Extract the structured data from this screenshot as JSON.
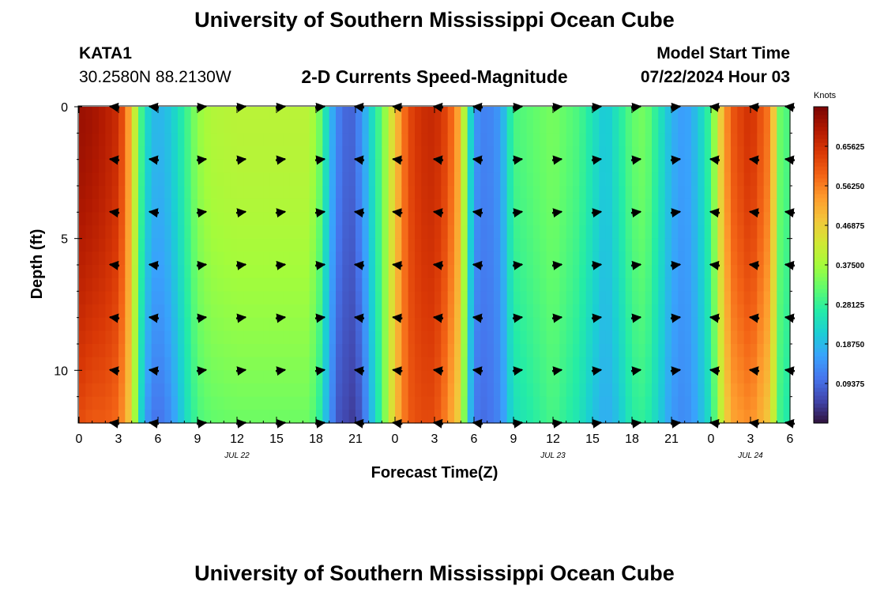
{
  "header": {
    "title": "University of Southern Mississippi Ocean Cube",
    "station_id": "KATA1",
    "station_coords": "30.2580N  88.2130W",
    "plot_title": "2-D Currents Speed-Magnitude",
    "model_start_label": "Model Start Time",
    "model_start_value": "07/22/2024 Hour 03"
  },
  "footer": {
    "title": "University of Southern Mississippi Ocean Cube"
  },
  "colors": {
    "colormap": [
      "#30123b",
      "#4145ab",
      "#4675ed",
      "#39a2fc",
      "#1bcfd4",
      "#24eca6",
      "#61fc6c",
      "#a4fc3b",
      "#d1e834",
      "#f3c63a",
      "#fe9b2d",
      "#f36315",
      "#d93806",
      "#b11901",
      "#7a0403"
    ],
    "arrow": "#000000",
    "axis": "#000000"
  },
  "chart_data": {
    "type": "heatmap",
    "xlabel": "Forecast Time(Z)",
    "ylabel": "Depth (ft)",
    "x_range_hours": [
      0,
      54
    ],
    "y_range_ft": [
      0,
      12
    ],
    "x_ticks": [
      {
        "hour": 0,
        "label": "0"
      },
      {
        "hour": 3,
        "label": "3"
      },
      {
        "hour": 6,
        "label": "6"
      },
      {
        "hour": 9,
        "label": "9"
      },
      {
        "hour": 12,
        "label": "12"
      },
      {
        "hour": 15,
        "label": "15"
      },
      {
        "hour": 18,
        "label": "18"
      },
      {
        "hour": 21,
        "label": "21"
      },
      {
        "hour": 24,
        "label": "0"
      },
      {
        "hour": 27,
        "label": "3"
      },
      {
        "hour": 30,
        "label": "6"
      },
      {
        "hour": 33,
        "label": "9"
      },
      {
        "hour": 36,
        "label": "12"
      },
      {
        "hour": 39,
        "label": "15"
      },
      {
        "hour": 42,
        "label": "18"
      },
      {
        "hour": 45,
        "label": "21"
      },
      {
        "hour": 48,
        "label": "0"
      },
      {
        "hour": 51,
        "label": "3"
      },
      {
        "hour": 54,
        "label": "6"
      }
    ],
    "y_ticks": [
      {
        "depth": 0,
        "label": "0"
      },
      {
        "depth": 5,
        "label": "5"
      },
      {
        "depth": 10,
        "label": "10"
      }
    ],
    "date_labels": [
      {
        "hour": 12,
        "label": "JUL 22"
      },
      {
        "hour": 36,
        "label": "JUL 23"
      },
      {
        "hour": 51,
        "label": "JUL 24"
      }
    ],
    "colorbar": {
      "title": "Knots",
      "range": [
        0.0,
        0.75
      ],
      "ticks": [
        {
          "value": 0.65625,
          "label": "0.65625"
        },
        {
          "value": 0.5625,
          "label": "0.56250"
        },
        {
          "value": 0.46875,
          "label": "0.46875"
        },
        {
          "value": 0.375,
          "label": "0.37500"
        },
        {
          "value": 0.28125,
          "label": "0.28125"
        },
        {
          "value": 0.1875,
          "label": "0.18750"
        },
        {
          "value": 0.09375,
          "label": "0.09375"
        }
      ]
    },
    "speed_profile_knots": {
      "hours": [
        0,
        1,
        2,
        3,
        3.7,
        4.3,
        4.8,
        5.4,
        6,
        6.8,
        7.5,
        8.3,
        9,
        10,
        12,
        15,
        17.5,
        18.3,
        19,
        19.7,
        20.5,
        21,
        21.6,
        22.3,
        23,
        23.6,
        24.3,
        25,
        26,
        27,
        28,
        29,
        29.6,
        30.3,
        31,
        32,
        33,
        36,
        38,
        39,
        40,
        41,
        42,
        43,
        44,
        45,
        46,
        47,
        48,
        48.6,
        49.5,
        51,
        52.5,
        53.2,
        53.6,
        54
      ],
      "surface": [
        0.72,
        0.71,
        0.69,
        0.66,
        0.55,
        0.4,
        0.28,
        0.2,
        0.18,
        0.2,
        0.24,
        0.3,
        0.36,
        0.39,
        0.4,
        0.4,
        0.4,
        0.33,
        0.2,
        0.12,
        0.08,
        0.1,
        0.16,
        0.24,
        0.32,
        0.42,
        0.52,
        0.62,
        0.66,
        0.67,
        0.62,
        0.5,
        0.25,
        0.13,
        0.12,
        0.15,
        0.3,
        0.34,
        0.3,
        0.25,
        0.2,
        0.26,
        0.32,
        0.34,
        0.26,
        0.18,
        0.15,
        0.2,
        0.3,
        0.45,
        0.6,
        0.66,
        0.56,
        0.34,
        0.25,
        0.4
      ],
      "bottom": [
        0.62,
        0.6,
        0.6,
        0.58,
        0.5,
        0.36,
        0.2,
        0.12,
        0.1,
        0.13,
        0.18,
        0.25,
        0.3,
        0.32,
        0.33,
        0.33,
        0.33,
        0.27,
        0.15,
        0.07,
        0.05,
        0.04,
        0.1,
        0.2,
        0.3,
        0.42,
        0.52,
        0.6,
        0.62,
        0.62,
        0.55,
        0.45,
        0.2,
        0.1,
        0.1,
        0.13,
        0.24,
        0.3,
        0.25,
        0.2,
        0.17,
        0.2,
        0.27,
        0.28,
        0.22,
        0.15,
        0.13,
        0.17,
        0.25,
        0.38,
        0.52,
        0.55,
        0.47,
        0.3,
        0.22,
        0.34
      ]
    },
    "vector_depths_ft": [
      0,
      2,
      4,
      6,
      8,
      10,
      12
    ],
    "vector_hours": [
      2.7,
      5.7,
      9.3,
      12.3,
      15.3,
      18.3,
      21.3,
      24.2,
      27.3,
      30.3,
      33.3,
      36.3,
      39.3,
      42.3,
      45.3,
      48.3,
      51.3,
      54
    ],
    "vector_direction": [
      "W",
      "W",
      "E",
      "E",
      "E",
      "E",
      "W",
      "W",
      "W",
      "W",
      "E",
      "E",
      "E",
      "E",
      "E",
      "W",
      "W",
      "W"
    ]
  }
}
